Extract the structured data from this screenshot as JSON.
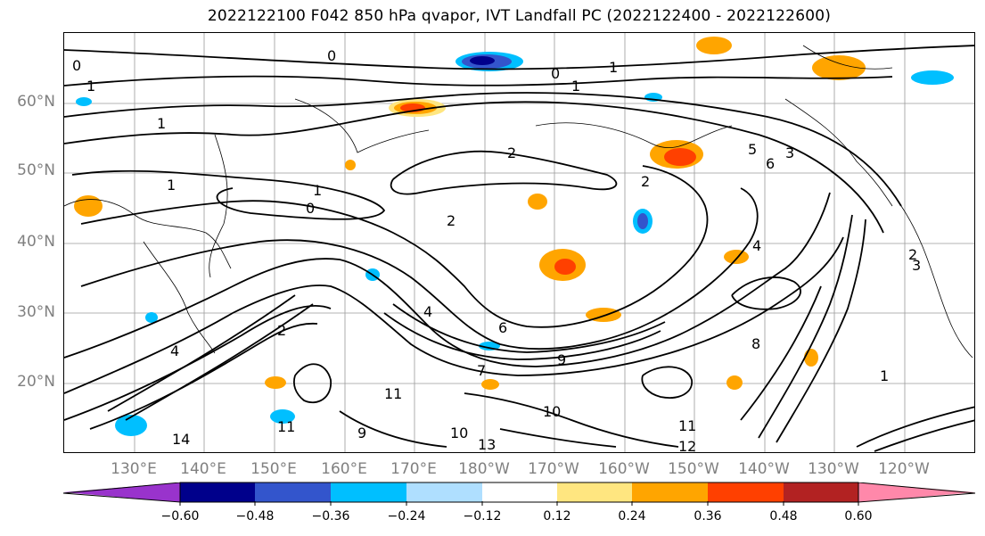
{
  "title": "2022122100 F042 850 hPa qvapor, IVT Landfall PC (2022122400 - 2022122600)",
  "lat_labels": [
    "60°N",
    "50°N",
    "40°N",
    "30°N",
    "20°N"
  ],
  "lon_labels": [
    "130°E",
    "140°E",
    "150°E",
    "160°E",
    "170°E",
    "180°W",
    "170°W",
    "160°W",
    "150°W",
    "140°W",
    "130°W",
    "120°W"
  ],
  "colorbar": {
    "ticks": [
      "−0.60",
      "−0.48",
      "−0.36",
      "−0.24",
      "−0.12",
      "0.12",
      "0.24",
      "0.36",
      "0.48",
      "0.60"
    ],
    "colors": [
      "#9933cc",
      "#00008b",
      "#3355cc",
      "#00bfff",
      "#afdfff",
      "#ffffff",
      "#ffe680",
      "#ffa500",
      "#ff4000",
      "#b22222",
      "#ff88aa"
    ]
  },
  "contour_labels": [
    "0",
    "0",
    "0",
    "1",
    "1",
    "1",
    "1",
    "1",
    "1",
    "0",
    "2",
    "2",
    "2",
    "3",
    "5",
    "6",
    "4",
    "2",
    "4",
    "6",
    "7",
    "8",
    "9",
    "10",
    "11",
    "11",
    "12",
    "13",
    "14",
    "9",
    "10",
    "11",
    "1",
    "2",
    "3",
    "4"
  ],
  "colors": {
    "label": "#808080",
    "contour": "#000000"
  }
}
